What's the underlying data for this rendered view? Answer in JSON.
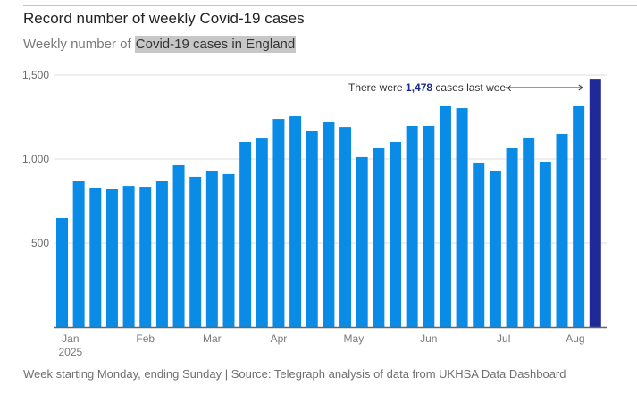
{
  "header": {
    "title": "Record number of weekly Covid-19 cases",
    "subtitle_prefix": "Weekly number of ",
    "subtitle_highlight": "Covid-19 cases in England"
  },
  "footer": {
    "source": "Week starting Monday, ending Sunday | Source: Telegraph analysis of data from UKHSA Data Dashboard"
  },
  "colors": {
    "bar": "#0a8ce6",
    "highlight_bar": "#1f2a96",
    "grid": "#dedede",
    "axis": "#666666"
  },
  "chart_data": {
    "type": "bar",
    "title": "Record number of weekly Covid-19 cases",
    "subtitle": "Weekly number of Covid-19 cases in England",
    "xlabel": "",
    "ylabel": "",
    "ylim": [
      0,
      1500
    ],
    "yticks": [
      500,
      1000,
      1500
    ],
    "ytick_labels": [
      "500",
      "1,000",
      "1,500"
    ],
    "grid": true,
    "x_month_labels": [
      {
        "label": "Jan",
        "sublabel": "2025",
        "bar_index": 0.5
      },
      {
        "label": "Feb",
        "sublabel": "",
        "bar_index": 5
      },
      {
        "label": "Mar",
        "sublabel": "",
        "bar_index": 9
      },
      {
        "label": "Apr",
        "sublabel": "",
        "bar_index": 13
      },
      {
        "label": "May",
        "sublabel": "",
        "bar_index": 17.5
      },
      {
        "label": "Jun",
        "sublabel": "",
        "bar_index": 22
      },
      {
        "label": "Jul",
        "sublabel": "",
        "bar_index": 26.5
      },
      {
        "label": "Aug",
        "sublabel": "",
        "bar_index": 30.8
      }
    ],
    "series": [
      {
        "name": "Weekly Covid-19 cases",
        "values": [
          649,
          867,
          830,
          824,
          840,
          835,
          867,
          963,
          894,
          931,
          910,
          1101,
          1122,
          1239,
          1255,
          1165,
          1218,
          1191,
          1011,
          1064,
          1101,
          1197,
          1197,
          1314,
          1303,
          979,
          931,
          1064,
          1128,
          984,
          1149,
          1314,
          1478
        ]
      }
    ],
    "highlight_index": 32,
    "annotation": {
      "prefix": "There were ",
      "value": "1,478",
      "suffix": " cases last week"
    }
  }
}
